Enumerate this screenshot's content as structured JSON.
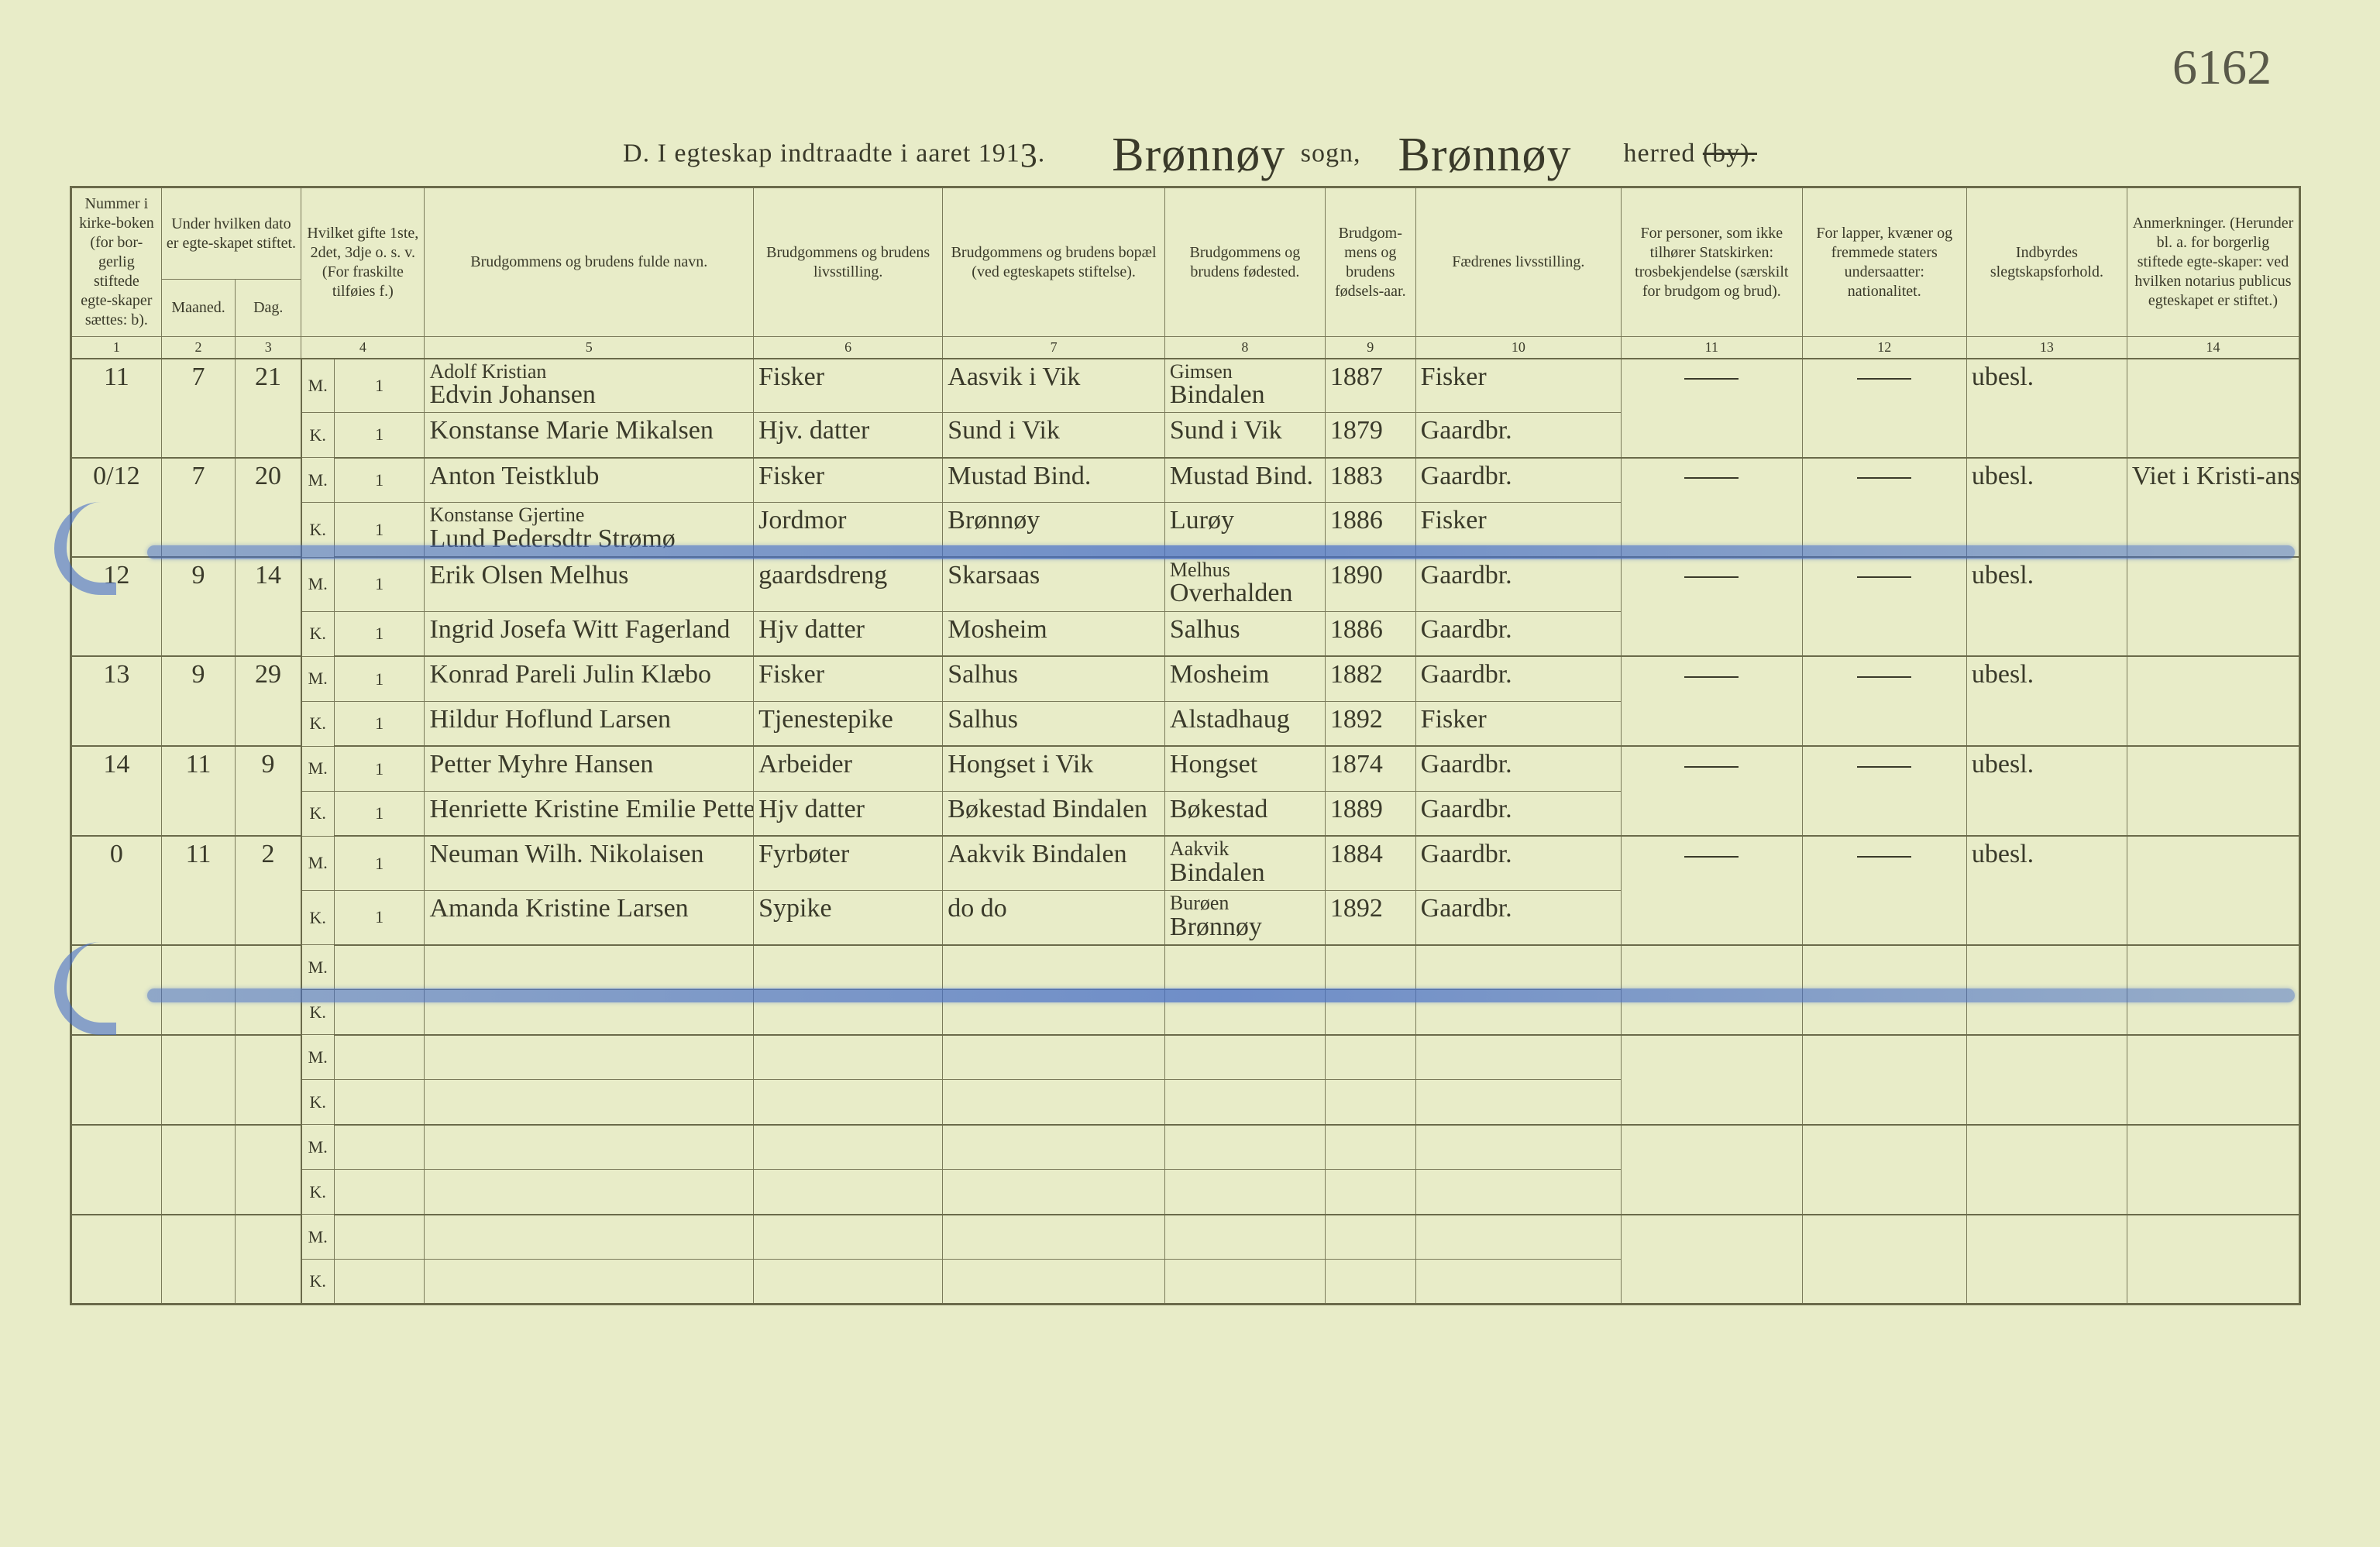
{
  "page_background": "#e8ecc8",
  "ink_color": "#3a3a2a",
  "rule_color": "#7a7a5a",
  "highlight_color": "#5a78c8",
  "corner_note": "6162",
  "title": {
    "prefix": "D.  I egteskap indtraadte i aaret 191",
    "year_hand": "3",
    "dot": ".",
    "sogn_hand": "Brønnøy",
    "sogn_label": "sogn,",
    "herred_hand": "Brønnøy",
    "herred_label": "herred",
    "struck": "(by)."
  },
  "headers": {
    "c1": "Nummer i kirke-boken (for bor-gerlig stiftede egte-skaper sættes: b).",
    "c23": "Under hvilken dato er egte-skapet stiftet.",
    "c2": "Maaned.",
    "c3": "Dag.",
    "c4": "Hvilket gifte 1ste, 2det, 3dje o. s. v. (For fraskilte tilføies f.)",
    "c5": "Brudgommens og brudens fulde navn.",
    "c6": "Brudgommens og brudens livsstilling.",
    "c7": "Brudgommens og brudens bopæl (ved egteskapets stiftelse).",
    "c8": "Brudgommens og brudens fødested.",
    "c9": "Brudgom-mens og brudens fødsels-aar.",
    "c10": "Fædrenes livsstilling.",
    "c11": "For personer, som ikke tilhører Statskirken: trosbekjendelse (særskilt for brudgom og brud).",
    "c12": "For lapper, kvæner og fremmede staters undersaatter: nationalitet.",
    "c13": "Indbyrdes slegtskapsforhold.",
    "c14": "Anmerkninger. (Herunder bl. a. for borgerlig stiftede egte-skaper: ved hvilken notarius publicus egteskapet er stiftet.)"
  },
  "colnums": [
    "1",
    "2",
    "3",
    "4",
    "",
    "5",
    "6",
    "7",
    "8",
    "9",
    "10",
    "11",
    "12",
    "13",
    "14"
  ],
  "mk": {
    "m": "M.",
    "k": "K."
  },
  "rows": [
    {
      "num": "11",
      "maaned": "7",
      "dag": "21",
      "m": {
        "gifte": "1",
        "navn_top": "Adolf Kristian",
        "navn": "Edvin Johansen",
        "livs": "Fisker",
        "bopael": "Aasvik i Vik",
        "fodested_top": "Gimsen",
        "fodested": "Bindalen",
        "aar": "1887",
        "faedre": "Fisker"
      },
      "k": {
        "gifte": "1",
        "navn": "Konstanse Marie Mikalsen",
        "livs": "Hjv. datter",
        "bopael": "Sund i Vik",
        "fodested": "Sund i Vik",
        "aar": "1879",
        "faedre": "Gaardbr."
      },
      "c13": "ubesl."
    },
    {
      "num": "0/12",
      "maaned": "7",
      "dag": "20",
      "m": {
        "gifte": "1",
        "navn": "Anton Teistklub",
        "livs": "Fisker",
        "bopael": "Mustad Bind.",
        "fodested": "Mustad Bind.",
        "aar": "1883",
        "faedre": "Gaardbr."
      },
      "k": {
        "gifte": "1",
        "navn_top": "Konstanse Gjertine",
        "navn": "Lund Pedersdtr Strømø",
        "livs": "Jordmor",
        "bopael": "Brønnøy",
        "fodested": "Lurøy",
        "aar": "1886",
        "faedre": "Fisker"
      },
      "c13": "ubesl.",
      "c14": "Viet i Kristi-ansund."
    },
    {
      "num": "12",
      "maaned": "9",
      "dag": "14",
      "m": {
        "gifte": "1",
        "navn": "Erik Olsen Melhus",
        "livs": "gaardsdreng",
        "bopael": "Skarsaas",
        "fodested_top": "Melhus",
        "fodested": "Overhalden",
        "aar": "1890",
        "faedre": "Gaardbr."
      },
      "k": {
        "gifte": "1",
        "navn": "Ingrid Josefa Witt Fagerland",
        "livs": "Hjv datter",
        "bopael": "Mosheim",
        "fodested": "Salhus",
        "aar": "1886",
        "faedre": "Gaardbr."
      },
      "c13": "ubesl."
    },
    {
      "num": "13",
      "maaned": "9",
      "dag": "29",
      "m": {
        "gifte": "1",
        "navn": "Konrad Pareli Julin Klæbo",
        "livs": "Fisker",
        "bopael": "Salhus",
        "fodested": "Mosheim",
        "aar": "1882",
        "faedre": "Gaardbr."
      },
      "k": {
        "gifte": "1",
        "navn": "Hildur Hoflund Larsen",
        "livs": "Tjenestepike",
        "bopael": "Salhus",
        "fodested": "Alstadhaug",
        "aar": "1892",
        "faedre": "Fisker"
      },
      "c13": "ubesl."
    },
    {
      "num": "14",
      "maaned": "11",
      "dag": "9",
      "m": {
        "gifte": "1",
        "navn": "Petter Myhre Hansen",
        "livs": "Arbeider",
        "bopael": "Hongset i Vik",
        "fodested": "Hongset",
        "aar": "1874",
        "faedre": "Gaardbr."
      },
      "k": {
        "gifte": "1",
        "navn": "Henriette Kristine Emilie Pettersen",
        "livs": "Hjv datter",
        "bopael": "Bøkestad Bindalen",
        "fodested": "Bøkestad",
        "aar": "1889",
        "faedre": "Gaardbr."
      },
      "c13": "ubesl."
    },
    {
      "num": "0",
      "maaned": "11",
      "dag": "2",
      "m": {
        "gifte": "1",
        "navn": "Neuman Wilh. Nikolaisen",
        "livs": "Fyrbøter",
        "bopael": "Aakvik Bindalen",
        "fodested_top": "Aakvik",
        "fodested": "Bindalen",
        "aar": "1884",
        "faedre": "Gaardbr."
      },
      "k": {
        "gifte": "1",
        "navn": "Amanda Kristine Larsen",
        "livs": "Sypike",
        "bopael": "do  do",
        "fodested_top": "Burøen",
        "fodested": "Brønnøy",
        "aar": "1892",
        "faedre": "Gaardbr."
      },
      "c13": "ubesl."
    }
  ],
  "empty_groups": 4
}
